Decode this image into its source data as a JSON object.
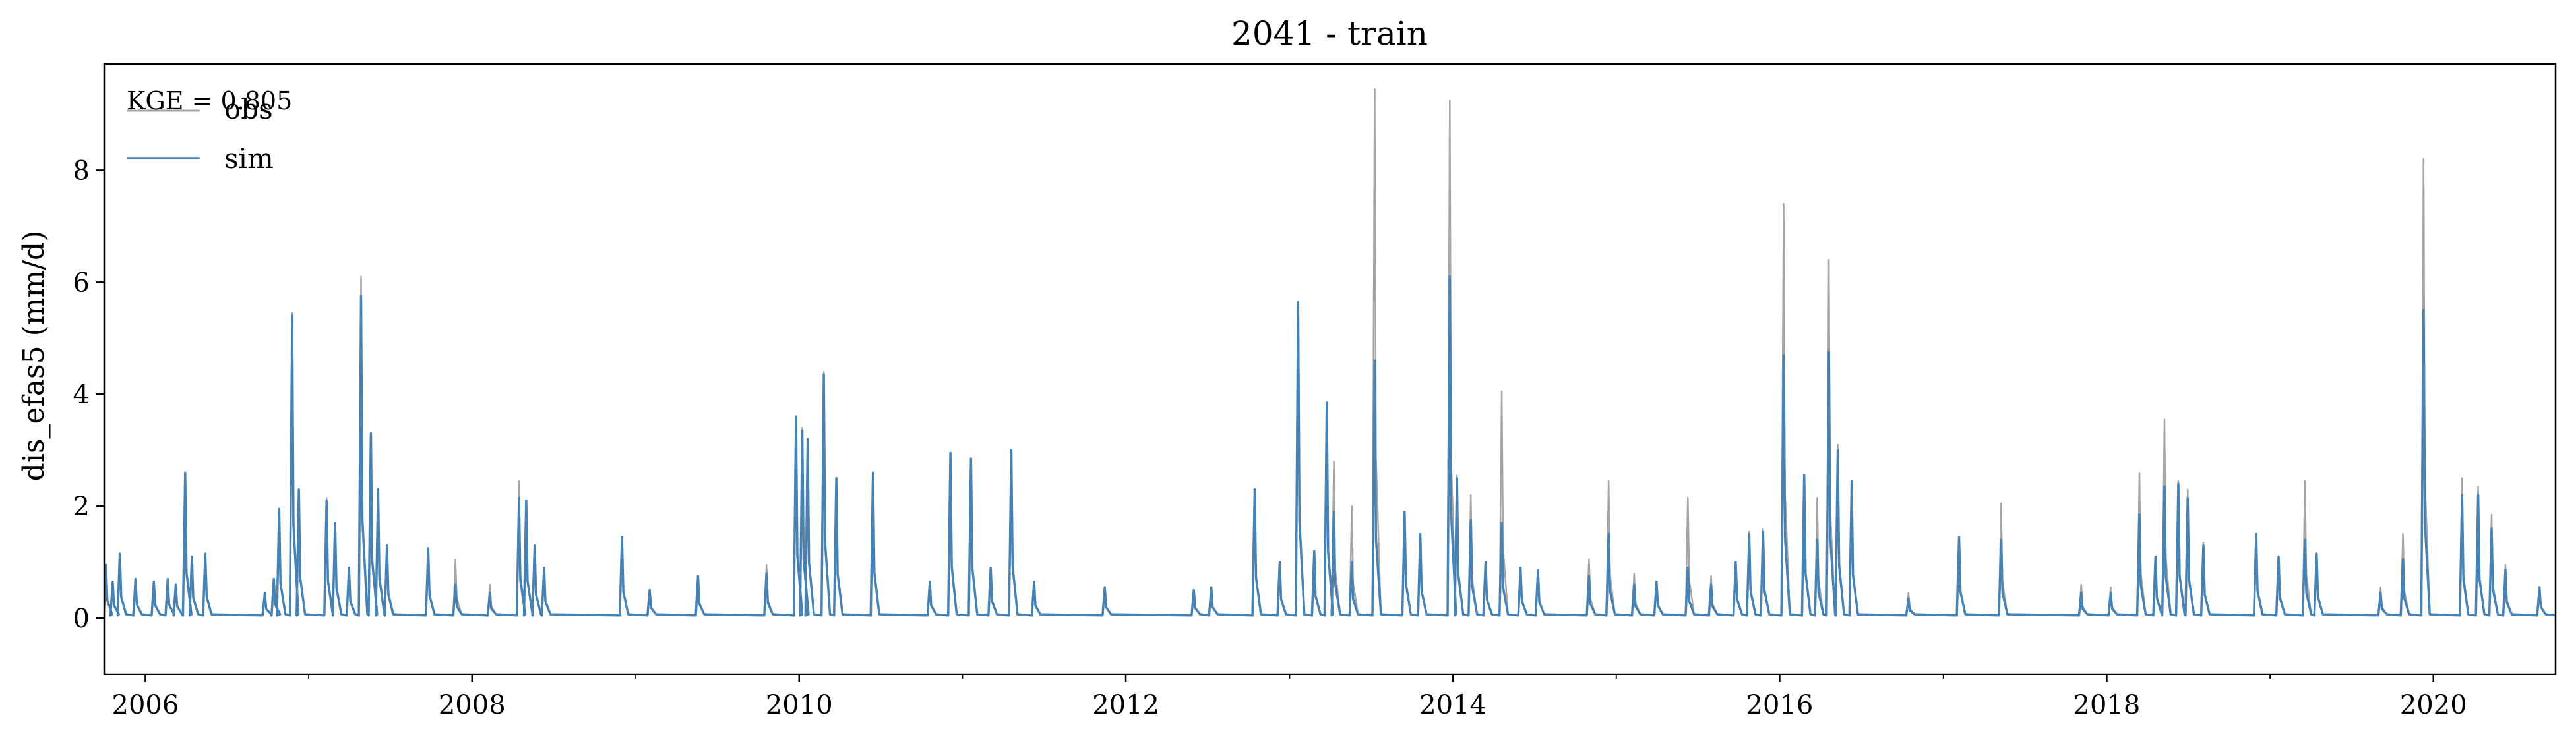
{
  "chart_data": {
    "type": "line",
    "title": "2041 - train",
    "xlabel": "",
    "ylabel": "dis_efas5 (mm/d)",
    "x_ticks": [
      "2006",
      "2008",
      "2010",
      "2012",
      "2014",
      "2016",
      "2018",
      "2020"
    ],
    "y_ticks": [
      "0",
      "2",
      "4",
      "6",
      "8"
    ],
    "xlim": [
      "2005-10-01",
      "2020-09-30"
    ],
    "ylim": [
      -1.0,
      9.9
    ],
    "grid": false,
    "legend_position": "top-left",
    "annotation": "KGE = 0.805",
    "baseline": 0.05,
    "colors": {
      "obs": "#a0a0a0",
      "sim": "#4682b4"
    },
    "series": [
      {
        "name": "obs",
        "color": "#a0a0a0",
        "peaks": [
          [
            "2005-10-05",
            0.95
          ],
          [
            "2005-10-20",
            0.65
          ],
          [
            "2005-11-05",
            1.15
          ],
          [
            "2005-12-10",
            0.7
          ],
          [
            "2006-01-20",
            0.65
          ],
          [
            "2006-02-20",
            0.7
          ],
          [
            "2006-03-10",
            0.6
          ],
          [
            "2006-03-31",
            2.6
          ],
          [
            "2006-04-15",
            1.1
          ],
          [
            "2006-05-15",
            1.15
          ],
          [
            "2006-09-25",
            0.45
          ],
          [
            "2006-10-15",
            0.7
          ],
          [
            "2006-10-27",
            1.95
          ],
          [
            "2006-11-25",
            5.45
          ],
          [
            "2006-12-10",
            2.3
          ],
          [
            "2007-02-10",
            2.15
          ],
          [
            "2007-03-01",
            1.7
          ],
          [
            "2007-04-01",
            0.9
          ],
          [
            "2007-04-28",
            6.1
          ],
          [
            "2007-05-20",
            3.3
          ],
          [
            "2007-06-05",
            2.3
          ],
          [
            "2007-06-25",
            1.3
          ],
          [
            "2007-09-25",
            1.25
          ],
          [
            "2007-11-25",
            1.05
          ],
          [
            "2008-02-10",
            0.6
          ],
          [
            "2008-04-15",
            2.45
          ],
          [
            "2008-05-01",
            2.1
          ],
          [
            "2008-05-20",
            1.3
          ],
          [
            "2008-06-10",
            0.9
          ],
          [
            "2008-12-01",
            1.45
          ],
          [
            "2009-02-01",
            0.5
          ],
          [
            "2009-05-20",
            0.75
          ],
          [
            "2009-10-20",
            0.95
          ],
          [
            "2009-12-25",
            3.6
          ],
          [
            "2010-01-08",
            3.4
          ],
          [
            "2010-01-20",
            3.2
          ],
          [
            "2010-02-25",
            4.4
          ],
          [
            "2010-03-25",
            2.5
          ],
          [
            "2010-06-15",
            2.6
          ],
          [
            "2010-10-20",
            0.65
          ],
          [
            "2010-12-05",
            2.95
          ],
          [
            "2011-01-20",
            2.85
          ],
          [
            "2011-03-05",
            0.9
          ],
          [
            "2011-04-20",
            3.0
          ],
          [
            "2011-06-10",
            0.65
          ],
          [
            "2011-11-15",
            0.55
          ],
          [
            "2012-06-01",
            0.5
          ],
          [
            "2012-07-10",
            0.55
          ],
          [
            "2012-10-15",
            2.3
          ],
          [
            "2012-12-10",
            1.0
          ],
          [
            "2013-01-20",
            5.65
          ],
          [
            "2013-02-25",
            1.2
          ],
          [
            "2013-03-25",
            3.85
          ],
          [
            "2013-04-10",
            2.8
          ],
          [
            "2013-05-20",
            2.0
          ],
          [
            "2013-07-10",
            9.45
          ],
          [
            "2013-09-15",
            1.9
          ],
          [
            "2013-10-20",
            1.5
          ],
          [
            "2013-12-25",
            9.25
          ],
          [
            "2014-01-10",
            2.55
          ],
          [
            "2014-02-10",
            2.2
          ],
          [
            "2014-03-15",
            1.0
          ],
          [
            "2014-04-20",
            4.05
          ],
          [
            "2014-06-01",
            0.9
          ],
          [
            "2014-07-10",
            0.85
          ],
          [
            "2014-11-01",
            1.05
          ],
          [
            "2014-12-15",
            2.45
          ],
          [
            "2015-02-10",
            0.8
          ],
          [
            "2015-04-01",
            0.65
          ],
          [
            "2015-06-10",
            2.15
          ],
          [
            "2015-08-01",
            0.75
          ],
          [
            "2015-09-25",
            1.0
          ],
          [
            "2015-10-25",
            1.55
          ],
          [
            "2015-11-25",
            1.6
          ],
          [
            "2016-01-10",
            7.4
          ],
          [
            "2016-02-25",
            2.55
          ],
          [
            "2016-03-25",
            2.15
          ],
          [
            "2016-04-20",
            6.4
          ],
          [
            "2016-05-10",
            3.1
          ],
          [
            "2016-06-10",
            2.45
          ],
          [
            "2016-10-15",
            0.45
          ],
          [
            "2017-02-05",
            1.45
          ],
          [
            "2017-05-10",
            2.05
          ],
          [
            "2017-11-05",
            0.6
          ],
          [
            "2018-01-10",
            0.55
          ],
          [
            "2018-03-15",
            2.6
          ],
          [
            "2018-04-20",
            1.1
          ],
          [
            "2018-05-10",
            3.55
          ],
          [
            "2018-06-10",
            2.45
          ],
          [
            "2018-07-01",
            2.3
          ],
          [
            "2018-08-05",
            1.35
          ],
          [
            "2018-12-01",
            1.5
          ],
          [
            "2019-01-20",
            1.1
          ],
          [
            "2019-03-20",
            2.45
          ],
          [
            "2019-04-15",
            1.15
          ],
          [
            "2019-09-05",
            0.55
          ],
          [
            "2019-10-25",
            1.5
          ],
          [
            "2019-12-10",
            8.2
          ],
          [
            "2020-03-05",
            2.5
          ],
          [
            "2020-04-10",
            2.35
          ],
          [
            "2020-05-10",
            1.85
          ],
          [
            "2020-06-10",
            0.95
          ],
          [
            "2020-08-25",
            0.55
          ]
        ]
      },
      {
        "name": "sim",
        "color": "#4682b4",
        "peaks": [
          [
            "2005-10-05",
            0.95
          ],
          [
            "2005-10-20",
            0.65
          ],
          [
            "2005-11-05",
            1.15
          ],
          [
            "2005-12-10",
            0.7
          ],
          [
            "2006-01-20",
            0.65
          ],
          [
            "2006-02-20",
            0.7
          ],
          [
            "2006-03-10",
            0.6
          ],
          [
            "2006-03-31",
            2.6
          ],
          [
            "2006-04-15",
            1.1
          ],
          [
            "2006-05-15",
            1.15
          ],
          [
            "2006-09-25",
            0.45
          ],
          [
            "2006-10-15",
            0.7
          ],
          [
            "2006-10-27",
            1.95
          ],
          [
            "2006-11-25",
            5.4
          ],
          [
            "2006-12-10",
            2.3
          ],
          [
            "2007-02-10",
            2.1
          ],
          [
            "2007-03-01",
            1.7
          ],
          [
            "2007-04-01",
            0.9
          ],
          [
            "2007-04-28",
            5.75
          ],
          [
            "2007-05-20",
            3.3
          ],
          [
            "2007-06-05",
            2.3
          ],
          [
            "2007-06-25",
            1.3
          ],
          [
            "2007-09-25",
            1.25
          ],
          [
            "2007-11-25",
            0.6
          ],
          [
            "2008-02-10",
            0.45
          ],
          [
            "2008-04-15",
            2.15
          ],
          [
            "2008-05-01",
            2.1
          ],
          [
            "2008-05-20",
            1.3
          ],
          [
            "2008-06-10",
            0.9
          ],
          [
            "2008-12-01",
            1.45
          ],
          [
            "2009-02-01",
            0.5
          ],
          [
            "2009-05-20",
            0.75
          ],
          [
            "2009-10-20",
            0.8
          ],
          [
            "2009-12-25",
            3.6
          ],
          [
            "2010-01-08",
            3.35
          ],
          [
            "2010-01-20",
            3.2
          ],
          [
            "2010-02-25",
            4.35
          ],
          [
            "2010-03-25",
            2.5
          ],
          [
            "2010-06-15",
            2.6
          ],
          [
            "2010-10-20",
            0.65
          ],
          [
            "2010-12-05",
            2.95
          ],
          [
            "2011-01-20",
            2.85
          ],
          [
            "2011-03-05",
            0.9
          ],
          [
            "2011-04-20",
            3.0
          ],
          [
            "2011-06-10",
            0.65
          ],
          [
            "2011-11-15",
            0.55
          ],
          [
            "2012-06-01",
            0.5
          ],
          [
            "2012-07-10",
            0.55
          ],
          [
            "2012-10-15",
            2.3
          ],
          [
            "2012-12-10",
            1.0
          ],
          [
            "2013-01-20",
            5.65
          ],
          [
            "2013-02-25",
            1.2
          ],
          [
            "2013-03-25",
            3.85
          ],
          [
            "2013-04-10",
            1.9
          ],
          [
            "2013-05-20",
            1.0
          ],
          [
            "2013-07-10",
            4.6
          ],
          [
            "2013-09-15",
            1.9
          ],
          [
            "2013-10-20",
            1.5
          ],
          [
            "2013-12-25",
            6.1
          ],
          [
            "2014-01-10",
            2.5
          ],
          [
            "2014-02-10",
            1.75
          ],
          [
            "2014-03-15",
            1.0
          ],
          [
            "2014-04-20",
            1.7
          ],
          [
            "2014-06-01",
            0.9
          ],
          [
            "2014-07-10",
            0.85
          ],
          [
            "2014-11-01",
            0.75
          ],
          [
            "2014-12-15",
            1.5
          ],
          [
            "2015-02-10",
            0.6
          ],
          [
            "2015-04-01",
            0.65
          ],
          [
            "2015-06-10",
            0.9
          ],
          [
            "2015-08-01",
            0.6
          ],
          [
            "2015-09-25",
            1.0
          ],
          [
            "2015-10-25",
            1.5
          ],
          [
            "2015-11-25",
            1.55
          ],
          [
            "2016-01-10",
            4.7
          ],
          [
            "2016-02-25",
            2.55
          ],
          [
            "2016-03-25",
            1.4
          ],
          [
            "2016-04-20",
            4.75
          ],
          [
            "2016-05-10",
            3.0
          ],
          [
            "2016-06-10",
            2.45
          ],
          [
            "2016-10-15",
            0.35
          ],
          [
            "2017-02-05",
            1.45
          ],
          [
            "2017-05-10",
            1.4
          ],
          [
            "2017-11-05",
            0.45
          ],
          [
            "2018-01-10",
            0.45
          ],
          [
            "2018-03-15",
            1.85
          ],
          [
            "2018-04-20",
            1.1
          ],
          [
            "2018-05-10",
            2.35
          ],
          [
            "2018-06-10",
            2.4
          ],
          [
            "2018-07-01",
            2.15
          ],
          [
            "2018-08-05",
            1.3
          ],
          [
            "2018-12-01",
            1.5
          ],
          [
            "2019-01-20",
            1.1
          ],
          [
            "2019-03-20",
            1.4
          ],
          [
            "2019-04-15",
            1.15
          ],
          [
            "2019-09-05",
            0.45
          ],
          [
            "2019-10-25",
            1.05
          ],
          [
            "2019-12-10",
            5.5
          ],
          [
            "2020-03-05",
            2.2
          ],
          [
            "2020-04-10",
            2.2
          ],
          [
            "2020-05-10",
            1.6
          ],
          [
            "2020-06-10",
            0.85
          ],
          [
            "2020-08-25",
            0.55
          ]
        ]
      }
    ]
  }
}
